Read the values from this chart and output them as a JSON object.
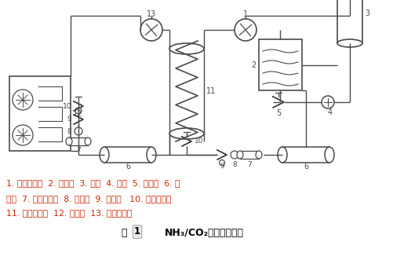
{
  "bg_color": "#ffffff",
  "line_color": "#4a4a4a",
  "text_color": "#cc2200",
  "caption_color": "#000000",
  "label_line1": "1. 高温压缩机  2. 冷凝器  3. 水箱  4. 水泵  5. 泄压阀  6. 贮",
  "label_line2": "液罐  7. 干燥过滤器  8. 视液镜  9. 电磁阀   10. 电子膨胀阀",
  "label_line3": "11. 蒸发冷凝器  12. 蒸发器  13. 低温压缩机",
  "fig_label": "图",
  "fig_title": "NH₃/CO₂复叠制冷系统",
  "fig_number": "1"
}
